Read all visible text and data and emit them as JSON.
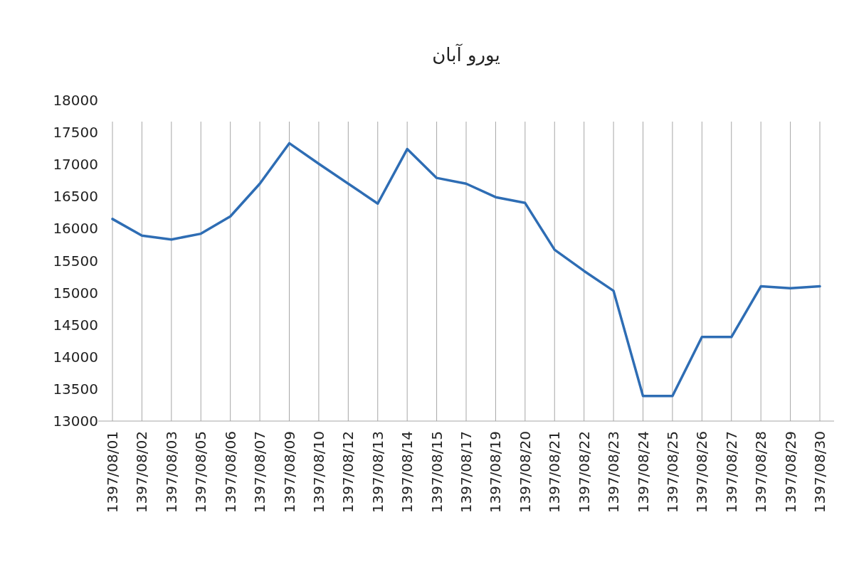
{
  "chart_data": {
    "type": "line",
    "title": "یورو آبان",
    "categories": [
      "1397/08/01",
      "1397/08/02",
      "1397/08/03",
      "1397/08/05",
      "1397/08/06",
      "1397/08/07",
      "1397/08/09",
      "1397/08/10",
      "1397/08/12",
      "1397/08/13",
      "1397/08/14",
      "1397/08/15",
      "1397/08/17",
      "1397/08/19",
      "1397/08/20",
      "1397/08/21",
      "1397/08/22",
      "1397/08/23",
      "1397/08/24",
      "1397/08/25",
      "1397/08/26",
      "1397/08/27",
      "1397/08/28",
      "1397/08/29",
      "1397/08/30"
    ],
    "series": [
      {
        "color": "#2e6db4",
        "values": [
          16150,
          15890,
          15830,
          15920,
          16190,
          16700,
          17330,
          17010,
          16700,
          16390,
          17240,
          16790,
          16700,
          16490,
          16400,
          15670,
          15340,
          15030,
          13390,
          13390,
          14310,
          14310,
          15100,
          15070,
          15100
        ]
      }
    ],
    "ylim": [
      13000,
      18000
    ],
    "yticks": [
      13000,
      13500,
      14000,
      14500,
      15000,
      15500,
      16000,
      16500,
      17000,
      17500,
      18000
    ],
    "grid": "x",
    "marker": "none",
    "line_style": "solid"
  }
}
